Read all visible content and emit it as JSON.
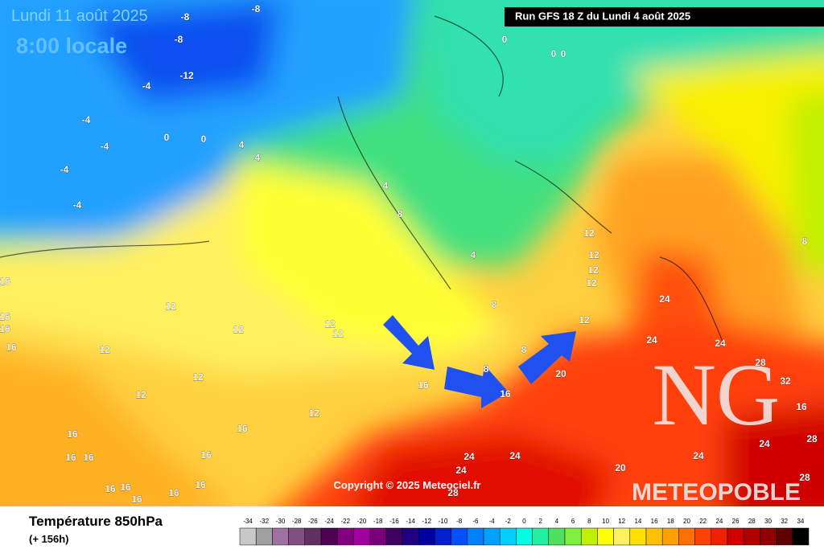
{
  "header": {
    "date": "Lundi 11 août 2025",
    "time": "8:00 locale",
    "run": "Run GFS 18 Z du Lundi 4 août 2025"
  },
  "copyright": "Copyright © 2025 Meteociel.fr",
  "watermark": {
    "logo": "NG",
    "text": "METEOPOBLE"
  },
  "footer": {
    "title": "Température 850hPa",
    "lead": "(+ 156h)"
  },
  "contour_labels": [
    -8,
    -8,
    -8,
    -12,
    -4,
    -4,
    -4,
    0,
    0,
    -4,
    -4,
    4,
    4,
    4,
    8,
    0,
    0,
    0,
    12,
    12,
    12,
    12,
    4,
    8,
    12,
    24,
    24,
    8,
    12,
    12,
    12,
    12,
    12,
    12,
    12,
    12,
    16,
    16,
    16,
    16,
    16,
    16,
    20,
    8,
    8,
    16,
    16,
    16,
    16,
    16,
    16,
    16,
    16,
    16,
    16,
    24,
    24,
    24,
    28,
    20,
    24,
    24,
    28,
    28,
    16,
    32,
    28,
    24
  ],
  "colorbar": {
    "ticks": [
      -34,
      -32,
      -30,
      -28,
      -26,
      -24,
      -22,
      -20,
      -18,
      -16,
      -14,
      -12,
      -10,
      -8,
      -6,
      -4,
      -2,
      0,
      2,
      4,
      6,
      8,
      10,
      12,
      14,
      16,
      18,
      20,
      22,
      24,
      26,
      28,
      30,
      32,
      34
    ],
    "colors": [
      "#c8c8c8",
      "#a0a0a0",
      "#a070a0",
      "#805080",
      "#603060",
      "#500050",
      "#800080",
      "#a000a0",
      "#780078",
      "#400060",
      "#200080",
      "#0000a0",
      "#0020d0",
      "#0050ff",
      "#0080ff",
      "#00a0ff",
      "#00d0ff",
      "#00ffe0",
      "#20f0a0",
      "#50e060",
      "#80f040",
      "#c0f000",
      "#ffff00",
      "#fff060",
      "#ffe000",
      "#ffc000",
      "#ffa000",
      "#ff7000",
      "#ff4000",
      "#f02000",
      "#d00000",
      "#b00000",
      "#900000",
      "#600000",
      "#000000"
    ]
  }
}
